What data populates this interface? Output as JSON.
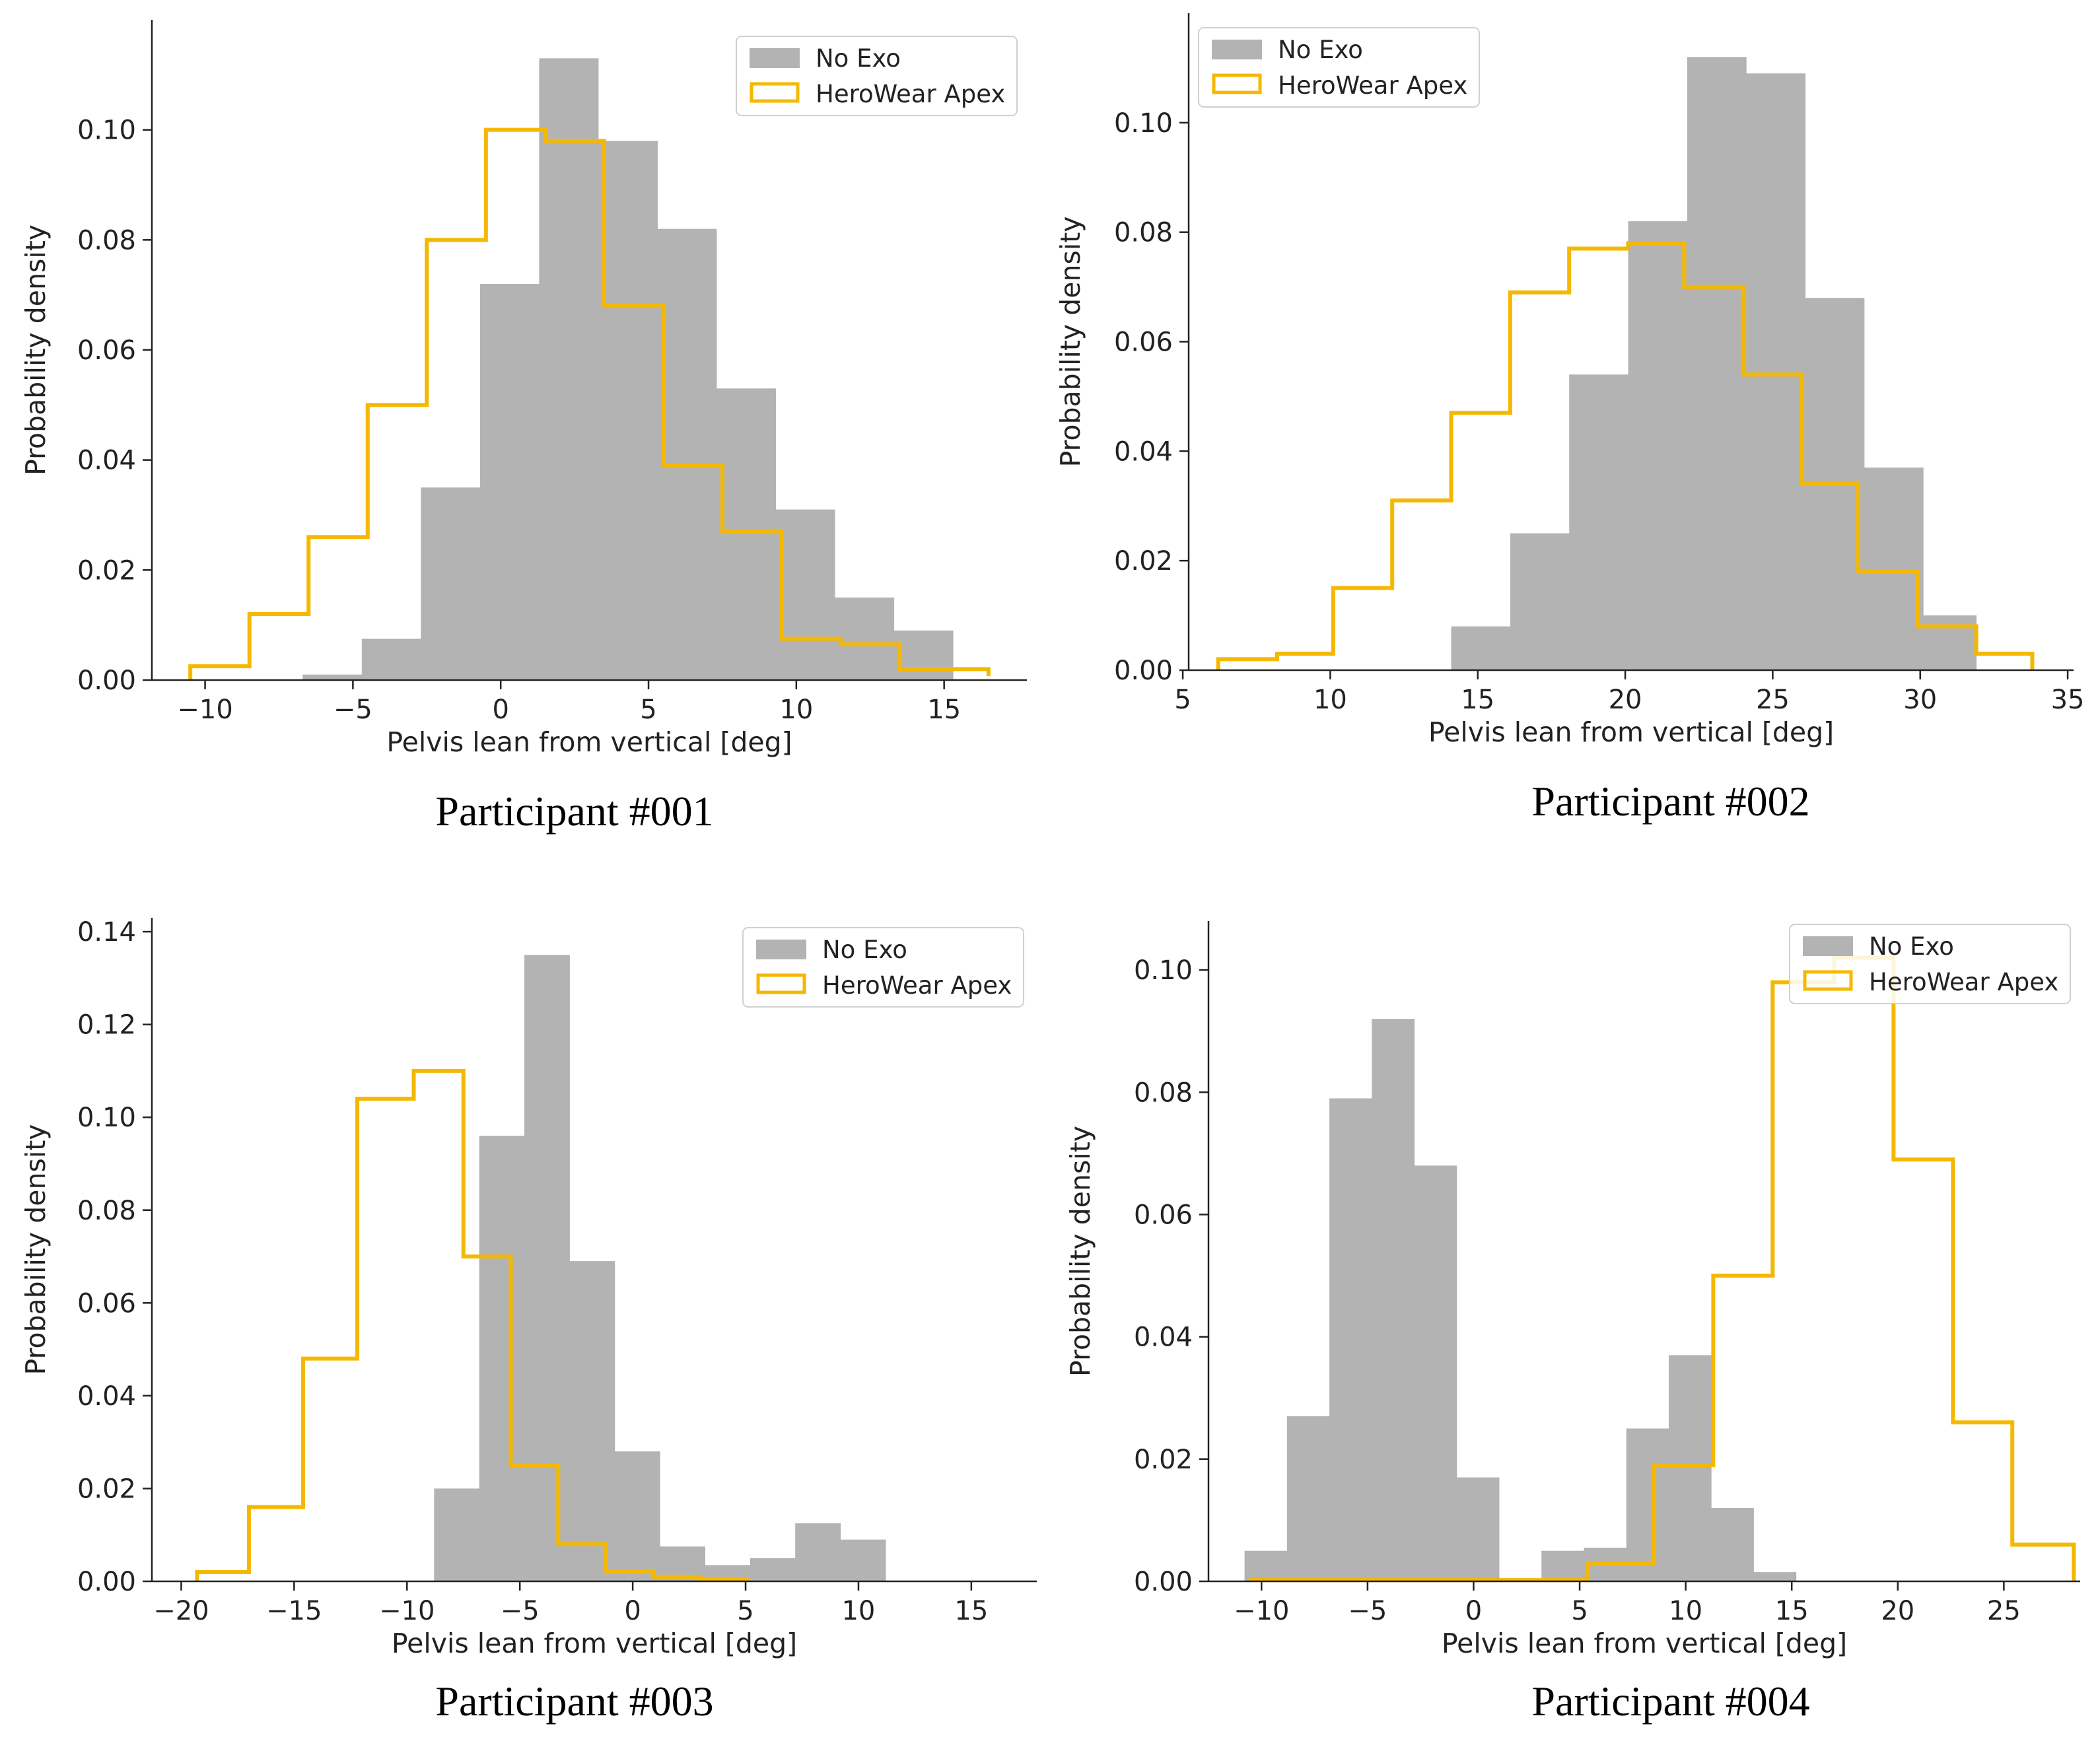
{
  "chart_data": [
    {
      "type": "histogram",
      "caption": "Participant #001",
      "xlabel": "Pelvis lean from vertical [deg]",
      "ylabel": "Probability density",
      "xlim": [
        -11.8,
        17.8
      ],
      "ylim": [
        0,
        0.12
      ],
      "xticks": [
        "−10",
        "−5",
        "0",
        "5",
        "10",
        "15"
      ],
      "xtick_values": [
        -10,
        -5,
        0,
        5,
        10,
        15
      ],
      "yticks": [
        "0.00",
        "0.02",
        "0.04",
        "0.06",
        "0.08",
        "0.10"
      ],
      "ytick_values": [
        0,
        0.02,
        0.04,
        0.06,
        0.08,
        0.1
      ],
      "legend": [
        "No Exo",
        "HeroWear Apex"
      ],
      "legend_position": "top-right",
      "series": [
        {
          "name": "No Exo",
          "style": "filled",
          "edges": [
            -6.7,
            -4.7,
            -2.7,
            -0.7,
            1.3,
            3.3,
            5.3,
            7.3,
            9.3,
            11.3,
            13.3,
            15.3
          ],
          "values": [
            0.001,
            0.0075,
            0.035,
            0.072,
            0.113,
            0.098,
            0.082,
            0.053,
            0.031,
            0.015,
            0.009,
            0.002
          ]
        },
        {
          "name": "HeroWear Apex",
          "style": "step",
          "edges": [
            -10.5,
            -8.5,
            -6.5,
            -4.5,
            -2.5,
            -0.5,
            1.5,
            3.5,
            5.5,
            7.5,
            9.5,
            11.5,
            13.5,
            16.5
          ],
          "values": [
            0.0025,
            0.012,
            0.026,
            0.05,
            0.08,
            0.1,
            0.098,
            0.068,
            0.039,
            0.027,
            0.0075,
            0.0065,
            0.002,
            0.0007
          ]
        }
      ]
    },
    {
      "type": "histogram",
      "caption": "Participant #002",
      "xlabel": "Pelvis lean from vertical [deg]",
      "ylabel": "Probability density",
      "xlim": [
        5.2,
        35.2
      ],
      "ylim": [
        0,
        0.12
      ],
      "xticks": [
        "5",
        "10",
        "15",
        "20",
        "25",
        "30",
        "35"
      ],
      "xtick_values": [
        5,
        10,
        15,
        20,
        25,
        30,
        35
      ],
      "yticks": [
        "0.00",
        "0.02",
        "0.04",
        "0.06",
        "0.08",
        "0.10"
      ],
      "ytick_values": [
        0,
        0.02,
        0.04,
        0.06,
        0.08,
        0.1
      ],
      "legend": [
        "No Exo",
        "HeroWear Apex"
      ],
      "legend_position": "top-left",
      "series": [
        {
          "name": "No Exo",
          "style": "filled",
          "edges": [
            14.1,
            16.1,
            18.1,
            20.1,
            22.1,
            24.1,
            26.1,
            28.1,
            30.1,
            31.9
          ],
          "values": [
            0.008,
            0.025,
            0.054,
            0.082,
            0.112,
            0.109,
            0.068,
            0.037,
            0.01
          ]
        },
        {
          "name": "HeroWear Apex",
          "style": "step",
          "edges": [
            6.2,
            8.2,
            10.1,
            12.1,
            14.1,
            16.1,
            18.1,
            20.1,
            22.0,
            24.0,
            26.0,
            27.9,
            29.9,
            31.9,
            33.8
          ],
          "values": [
            0.002,
            0.003,
            0.015,
            0.031,
            0.047,
            0.069,
            0.077,
            0.078,
            0.07,
            0.054,
            0.034,
            0.018,
            0.008,
            0.003
          ]
        }
      ]
    },
    {
      "type": "histogram",
      "caption": "Participant #003",
      "xlabel": "Pelvis lean from vertical [deg]",
      "ylabel": "Probability density",
      "xlim": [
        -21.3,
        17.9
      ],
      "ylim": [
        0,
        0.143
      ],
      "xticks": [
        "−20",
        "−15",
        "−10",
        "−5",
        "0",
        "5",
        "10",
        "15"
      ],
      "xtick_values": [
        -20,
        -15,
        -10,
        -5,
        0,
        5,
        10,
        15
      ],
      "yticks": [
        "0.00",
        "0.02",
        "0.04",
        "0.06",
        "0.08",
        "0.10",
        "0.12",
        "0.14"
      ],
      "ytick_values": [
        0,
        0.02,
        0.04,
        0.06,
        0.08,
        0.1,
        0.12,
        0.14
      ],
      "legend": [
        "No Exo",
        "HeroWear Apex"
      ],
      "legend_position": "top-right",
      "series": [
        {
          "name": "No Exo",
          "style": "filled",
          "edges": [
            -8.8,
            -6.8,
            -4.8,
            -2.8,
            -0.8,
            1.2,
            3.2,
            5.2,
            7.2,
            9.2,
            11.2,
            13.2,
            15.2
          ],
          "values": [
            0.02,
            0.096,
            0.135,
            0.069,
            0.028,
            0.0075,
            0.0035,
            0.005,
            0.0125,
            0.009,
            0,
            0
          ]
        },
        {
          "name": "HeroWear Apex",
          "style": "step",
          "edges": [
            -19.3,
            -17.0,
            -14.6,
            -12.2,
            -9.7,
            -7.5,
            -5.4,
            -3.3,
            -1.2,
            0.9,
            3.0,
            5.1
          ],
          "values": [
            0.002,
            0.016,
            0.048,
            0.104,
            0.11,
            0.07,
            0.025,
            0.008,
            0.002,
            0.001,
            0.0005
          ]
        }
      ]
    },
    {
      "type": "histogram",
      "caption": "Participant #004",
      "xlabel": "Pelvis lean from vertical [deg]",
      "ylabel": "Probability density",
      "xlim": [
        -12.5,
        28.6
      ],
      "ylim": [
        0,
        0.108
      ],
      "xticks": [
        "−10",
        "−5",
        "0",
        "5",
        "10",
        "15",
        "20",
        "25"
      ],
      "xtick_values": [
        -10,
        -5,
        0,
        5,
        10,
        15,
        20,
        25
      ],
      "yticks": [
        "0.00",
        "0.02",
        "0.04",
        "0.06",
        "0.08",
        "0.10"
      ],
      "ytick_values": [
        0,
        0.02,
        0.04,
        0.06,
        0.08,
        0.1
      ],
      "legend": [
        "No Exo",
        "HeroWear Apex"
      ],
      "legend_position": "top-right",
      "series": [
        {
          "name": "No Exo",
          "style": "filled",
          "edges": [
            -10.8,
            -8.8,
            -6.8,
            -4.8,
            -2.8,
            -0.8,
            1.2,
            3.2,
            5.2,
            7.2,
            9.2,
            11.2,
            13.2,
            15.2,
            17.2
          ],
          "values": [
            0.005,
            0.027,
            0.079,
            0.092,
            0.068,
            0.017,
            0,
            0.005,
            0.0055,
            0.025,
            0.037,
            0.012,
            0.0015,
            0
          ]
        },
        {
          "name": "HeroWear Apex",
          "style": "step",
          "edges": [
            -10.5,
            5.4,
            8.5,
            11.3,
            14.1,
            17.0,
            19.8,
            22.6,
            25.4,
            28.3
          ],
          "values": [
            0.0002,
            0.003,
            0.019,
            0.05,
            0.098,
            0.102,
            0.069,
            0.026,
            0.006
          ]
        }
      ]
    }
  ]
}
